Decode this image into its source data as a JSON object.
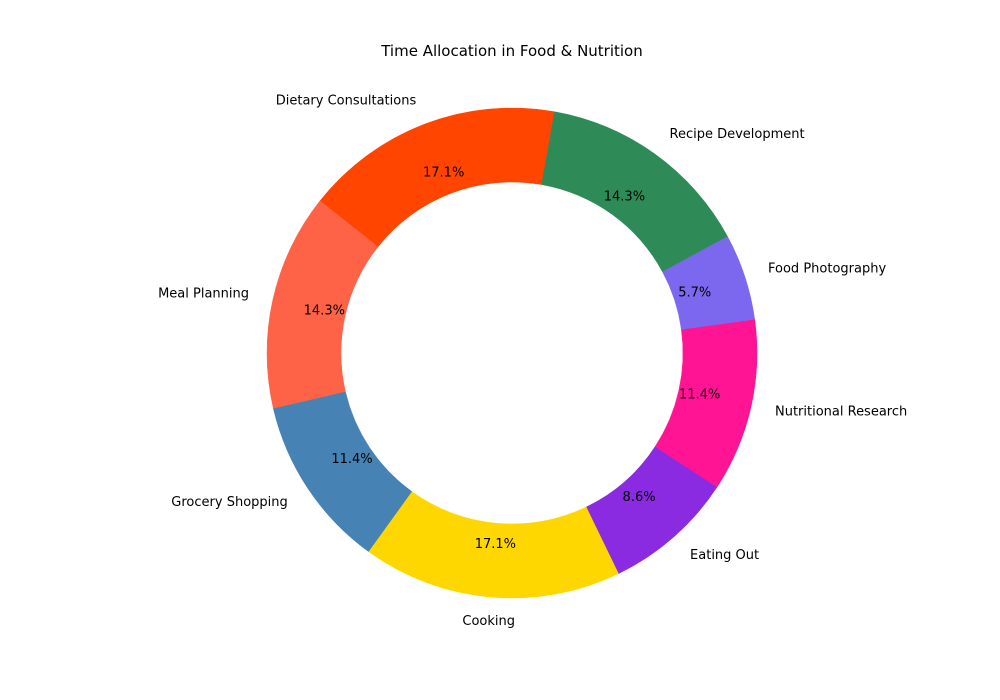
{
  "chart_data": {
    "type": "pie",
    "variant": "donut",
    "title": "Time Allocation in Food & Nutrition",
    "categories": [
      "Dietary Consultations",
      "Meal Planning",
      "Grocery Shopping",
      "Cooking",
      "Eating Out",
      "Nutritional Research",
      "Food Photography",
      "Recipe Development"
    ],
    "values": [
      17.1,
      14.3,
      11.4,
      17.1,
      8.6,
      11.4,
      5.7,
      14.3
    ],
    "percent_labels": [
      "17.1%",
      "14.3%",
      "11.4%",
      "17.1%",
      "8.6%",
      "11.4%",
      "5.7%",
      "14.3%"
    ],
    "colors": [
      "#FF4500",
      "#FF6347",
      "#4682B4",
      "#FFD700",
      "#8A2BE2",
      "#FF1493",
      "#7B68EE",
      "#2E8B57"
    ],
    "start_angle_deg": 80,
    "direction": "counterclockwise",
    "legend": "none"
  }
}
